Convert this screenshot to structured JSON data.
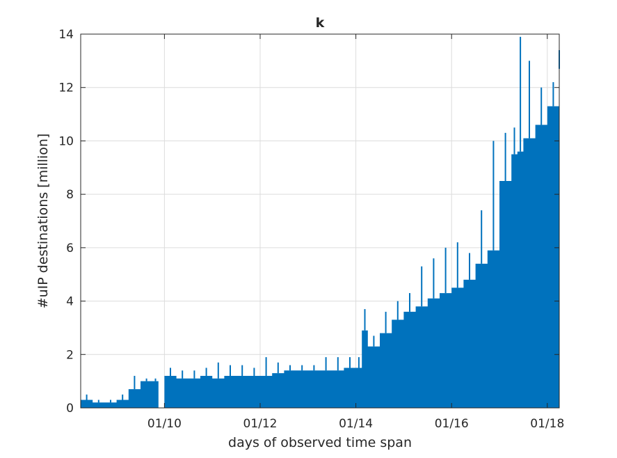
{
  "chart_data": {
    "type": "area",
    "title": "k",
    "xlabel": "days of observed time span",
    "ylabel": "#uIP destinations [million]",
    "xlim": [
      "2018-01-08 06:00",
      "2018-01-18 06:00"
    ],
    "ylim": [
      0,
      14
    ],
    "grid": true,
    "color": "#0072BD",
    "x_ticks": [
      {
        "date": "2018-01-10",
        "label": "01/10"
      },
      {
        "date": "2018-01-12",
        "label": "01/12"
      },
      {
        "date": "2018-01-14",
        "label": "01/14"
      },
      {
        "date": "2018-01-16",
        "label": "01/16"
      },
      {
        "date": "2018-01-18",
        "label": "01/18"
      }
    ],
    "y_ticks": [
      0,
      2,
      4,
      6,
      8,
      10,
      12,
      14
    ],
    "series": [
      {
        "x": [
          "2018-01-08 06:00",
          "2018-01-08 12:00",
          "2018-01-08 18:00",
          "2018-01-09 00:00",
          "2018-01-09 06:00",
          "2018-01-09 12:00",
          "2018-01-09 18:00",
          "2018-01-09 21:00",
          "2018-01-10 00:00",
          "2018-01-10 06:00",
          "2018-01-10 12:00",
          "2018-01-10 18:00",
          "2018-01-11 00:00",
          "2018-01-11 06:00",
          "2018-01-11 12:00",
          "2018-01-11 18:00",
          "2018-01-12 00:00",
          "2018-01-12 06:00",
          "2018-01-12 12:00",
          "2018-01-12 18:00",
          "2018-01-13 00:00",
          "2018-01-13 06:00",
          "2018-01-13 12:00",
          "2018-01-13 18:00",
          "2018-01-14 00:00",
          "2018-01-14 03:00",
          "2018-01-14 06:00",
          "2018-01-14 12:00",
          "2018-01-14 18:00",
          "2018-01-15 00:00",
          "2018-01-15 06:00",
          "2018-01-15 12:00",
          "2018-01-15 18:00",
          "2018-01-16 00:00",
          "2018-01-16 06:00",
          "2018-01-16 12:00",
          "2018-01-16 18:00",
          "2018-01-17 00:00",
          "2018-01-17 06:00",
          "2018-01-17 09:00",
          "2018-01-17 12:00",
          "2018-01-17 18:00",
          "2018-01-18 00:00",
          "2018-01-18 06:00"
        ],
        "y": [
          0.3,
          0.2,
          0.2,
          0.3,
          0.7,
          1.0,
          1.0,
          0.0,
          1.2,
          1.1,
          1.1,
          1.2,
          1.1,
          1.2,
          1.2,
          1.2,
          1.2,
          1.3,
          1.4,
          1.4,
          1.4,
          1.4,
          1.4,
          1.5,
          1.5,
          2.9,
          2.3,
          2.8,
          3.3,
          3.6,
          3.8,
          4.1,
          4.3,
          4.5,
          4.8,
          5.4,
          5.9,
          8.5,
          9.5,
          9.6,
          10.1,
          10.6,
          11.3,
          12.7
        ],
        "peaks": [
          0.5,
          0.3,
          0.3,
          0.5,
          1.2,
          1.1,
          1.1,
          0.0,
          1.5,
          1.4,
          1.4,
          1.5,
          1.7,
          1.6,
          1.6,
          1.5,
          1.9,
          1.7,
          1.6,
          1.6,
          1.6,
          1.9,
          1.9,
          1.9,
          1.9,
          3.7,
          2.7,
          3.6,
          4.0,
          4.3,
          5.3,
          5.6,
          6.0,
          6.2,
          5.8,
          7.4,
          10.0,
          10.3,
          10.5,
          13.9,
          13.0,
          12.0,
          12.2,
          13.4
        ]
      }
    ]
  }
}
